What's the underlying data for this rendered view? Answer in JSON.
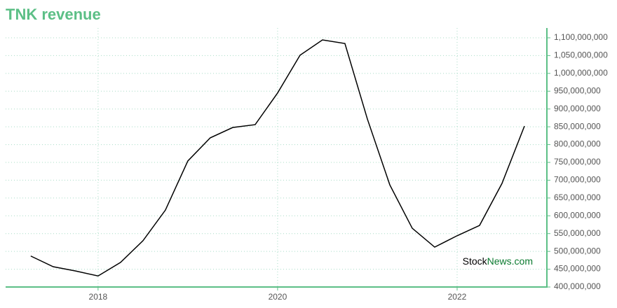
{
  "chart_data": {
    "type": "line",
    "title": "TNK revenue",
    "x": [
      2017.25,
      2017.5,
      2017.75,
      2018,
      2018.25,
      2018.5,
      2018.75,
      2019,
      2019.25,
      2019.5,
      2019.75,
      2020,
      2020.25,
      2020.5,
      2020.75,
      2021,
      2021.25,
      2021.5,
      2021.75,
      2022,
      2022.25,
      2022.5,
      2022.75
    ],
    "series": [
      {
        "name": "TNK revenue",
        "color": "#000000",
        "values": [
          487000000,
          457000000,
          445000000,
          431000000,
          469000000,
          530000000,
          616000000,
          754000000,
          819000000,
          848000000,
          856000000,
          945000000,
          1051000000,
          1094000000,
          1084000000,
          872000000,
          687000000,
          565000000,
          512000000,
          544000000,
          573000000,
          691000000,
          852000000
        ]
      }
    ],
    "xlim": [
      2016.97,
      2023
    ],
    "xticks": [
      2018,
      2020,
      2022
    ],
    "ylim": [
      400000000,
      1127500000
    ],
    "yticks": [
      {
        "value": 400000000,
        "label": "400,000,000"
      },
      {
        "value": 450000000,
        "label": "450,000,000"
      },
      {
        "value": 500000000,
        "label": "500,000,000"
      },
      {
        "value": 550000000,
        "label": "550,000,000"
      },
      {
        "value": 600000000,
        "label": "600,000,000"
      },
      {
        "value": 650000000,
        "label": "650,000,000"
      },
      {
        "value": 700000000,
        "label": "700,000,000"
      },
      {
        "value": 750000000,
        "label": "750,000,000"
      },
      {
        "value": 800000000,
        "label": "800,000,000"
      },
      {
        "value": 850000000,
        "label": "850,000,000"
      },
      {
        "value": 900000000,
        "label": "900,000,000"
      },
      {
        "value": 950000000,
        "label": "950,000,000"
      },
      {
        "value": 1000000000,
        "label": "1,000,000,000"
      },
      {
        "value": 1050000000,
        "label": "1,050,000,000"
      },
      {
        "value": 1100000000,
        "label": "1,100,000,000"
      }
    ],
    "grid": true,
    "axis_color": "#5cbf86",
    "watermark": [
      "Stock",
      "News.com"
    ]
  }
}
